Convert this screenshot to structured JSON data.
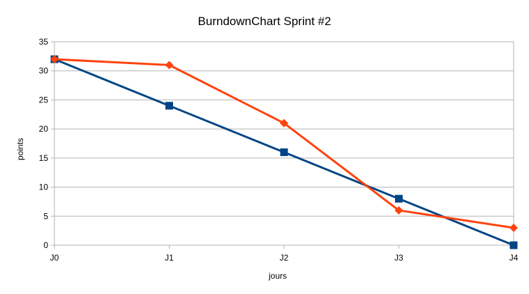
{
  "chart_data": {
    "type": "line",
    "title": "BurndownChart Sprint #2",
    "xlabel": "jours",
    "ylabel": "points",
    "categories": [
      "J0",
      "J1",
      "J2",
      "J3",
      "J4"
    ],
    "ylim": [
      0,
      35
    ],
    "yticks": [
      0,
      5,
      10,
      15,
      20,
      25,
      30,
      35
    ],
    "grid": true,
    "legend": "none",
    "series": [
      {
        "values": [
          32,
          24,
          16,
          8,
          0
        ],
        "color": "#004586",
        "marker": "square"
      },
      {
        "values": [
          32,
          31,
          21,
          6,
          3
        ],
        "color": "#ff420e",
        "marker": "diamond"
      }
    ]
  }
}
